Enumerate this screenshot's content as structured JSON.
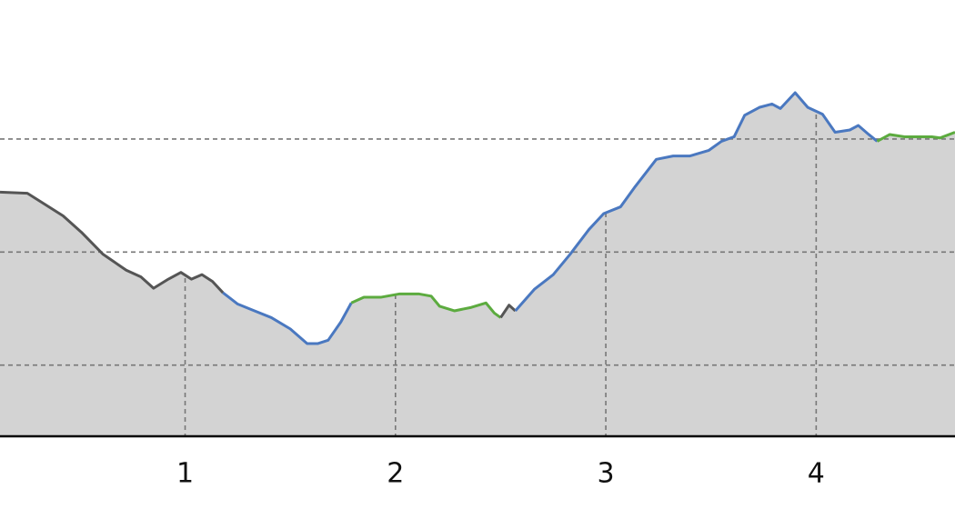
{
  "chart_data": {
    "type": "line",
    "xlim": [
      0.12,
      4.66
    ],
    "ylim": [
      0.37,
      4.23
    ],
    "xticks": [
      1,
      2,
      3,
      4
    ],
    "ygrid": [
      1,
      2,
      3
    ],
    "grid": true,
    "area_color": "#d3d3d3",
    "series": [
      {
        "color": "#555555",
        "x": [
          0.12,
          0.25,
          0.31,
          0.42,
          0.51,
          0.61,
          0.72,
          0.79,
          0.85,
          0.92,
          0.98,
          1.03,
          1.08,
          1.13,
          1.18
        ],
        "values": [
          2.53,
          2.52,
          2.45,
          2.32,
          2.17,
          1.98,
          1.84,
          1.78,
          1.68,
          1.76,
          1.82,
          1.76,
          1.8,
          1.74,
          1.64
        ]
      },
      {
        "color": "#4a78c0",
        "x": [
          1.18,
          1.25,
          1.33,
          1.41,
          1.5,
          1.58,
          1.63,
          1.68,
          1.74,
          1.79
        ],
        "values": [
          1.64,
          1.54,
          1.48,
          1.42,
          1.32,
          1.19,
          1.19,
          1.22,
          1.38,
          1.55
        ]
      },
      {
        "color": "#5cab3f",
        "x": [
          1.79,
          1.85,
          1.93,
          2.02,
          2.11,
          2.17,
          2.21,
          2.28,
          2.36,
          2.43,
          2.47,
          2.5
        ],
        "values": [
          1.55,
          1.6,
          1.6,
          1.63,
          1.63,
          1.61,
          1.52,
          1.48,
          1.51,
          1.55,
          1.46,
          1.42
        ]
      },
      {
        "color": "#555555",
        "x": [
          2.5,
          2.54,
          2.57
        ],
        "values": [
          1.42,
          1.53,
          1.48
        ]
      },
      {
        "color": "#4a78c0",
        "x": [
          2.57,
          2.66,
          2.75,
          2.83,
          2.92,
          2.99,
          3.07,
          3.14,
          3.24,
          3.32,
          3.4,
          3.49,
          3.55,
          3.61,
          3.66,
          3.73,
          3.79,
          3.83,
          3.9,
          3.96,
          4.03,
          4.09,
          4.16,
          4.2,
          4.25,
          4.29
        ],
        "values": [
          1.48,
          1.67,
          1.8,
          1.98,
          2.2,
          2.34,
          2.4,
          2.58,
          2.82,
          2.85,
          2.85,
          2.9,
          2.98,
          3.02,
          3.21,
          3.28,
          3.31,
          3.27,
          3.41,
          3.28,
          3.22,
          3.06,
          3.08,
          3.12,
          3.04,
          2.98
        ]
      },
      {
        "color": "#5cab3f",
        "x": [
          4.29,
          4.35,
          4.42,
          4.48,
          4.55,
          4.59,
          4.66
        ],
        "values": [
          2.98,
          3.04,
          3.02,
          3.02,
          3.02,
          3.01,
          3.06
        ]
      }
    ]
  }
}
